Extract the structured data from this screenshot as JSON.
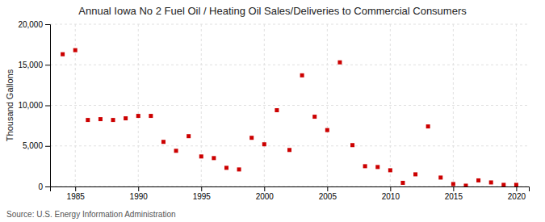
{
  "chart_data": {
    "type": "scatter",
    "title": "Annual Iowa No 2 Fuel Oil / Heating Oil Sales/Deliveries to Commercial Consumers",
    "ylabel": "Thousand Gallons",
    "annotations": [
      "Source: U.S. Energy Information Administration"
    ],
    "x": [
      1984,
      1985,
      1986,
      1987,
      1988,
      1989,
      1990,
      1991,
      1992,
      1993,
      1994,
      1995,
      1996,
      1997,
      1998,
      1999,
      2000,
      2001,
      2002,
      2003,
      2004,
      2005,
      2006,
      2007,
      2008,
      2009,
      2010,
      2011,
      2012,
      2013,
      2014,
      2015,
      2016,
      2017,
      2018,
      2019,
      2020
    ],
    "values": [
      16300,
      16800,
      8200,
      8300,
      8200,
      8400,
      8700,
      8700,
      5500,
      4400,
      6200,
      3700,
      3500,
      2300,
      2100,
      6000,
      5200,
      9400,
      4500,
      13700,
      8600,
      6950,
      15300,
      5100,
      2500,
      2400,
      2000,
      450,
      1500,
      7400,
      1100,
      300,
      100,
      750,
      500,
      200,
      200
    ],
    "color": "#cc0000",
    "marker": "square",
    "xlim": [
      1983,
      2021
    ],
    "xticks": [
      1985,
      1990,
      1995,
      2000,
      2005,
      2010,
      2015,
      2020
    ],
    "ylim": [
      0,
      20000
    ],
    "yticks": [
      0,
      {
        "value": 5000,
        "label": "5,000"
      },
      {
        "value": 10000,
        "label": "10,000"
      },
      {
        "value": 15000,
        "label": "15,000"
      },
      {
        "value": 20000,
        "label": "20,000"
      }
    ],
    "grid": true
  }
}
